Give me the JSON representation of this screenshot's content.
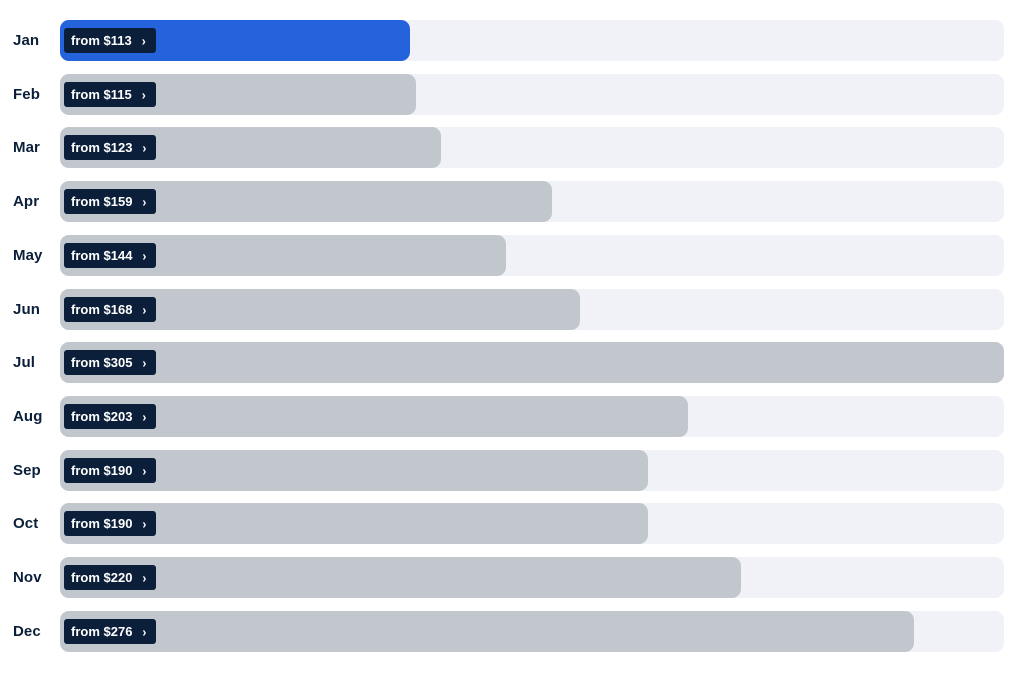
{
  "chart_data": {
    "type": "bar",
    "orientation": "horizontal",
    "categories": [
      "Jan",
      "Feb",
      "Mar",
      "Apr",
      "May",
      "Jun",
      "Jul",
      "Aug",
      "Sep",
      "Oct",
      "Nov",
      "Dec"
    ],
    "values": [
      113,
      115,
      123,
      159,
      144,
      168,
      305,
      203,
      190,
      190,
      220,
      276
    ],
    "value_labels": [
      "from $113",
      "from $115",
      "from $123",
      "from $159",
      "from $144",
      "from $168",
      "from $305",
      "from $203",
      "from $190",
      "from $190",
      "from $220",
      "from $276"
    ],
    "xlim": [
      0,
      305
    ],
    "highlighted_category": "Jan",
    "title": "",
    "xlabel": "",
    "ylabel": "",
    "grid": false,
    "legend": false
  },
  "colors": {
    "highlight_bar": "#2563dc",
    "bar": "#c2c7ce",
    "track": "#f0f2f7",
    "label_background": "#0b1f3a",
    "label_text": "#ffffff",
    "month_text": "#0b1f3a"
  },
  "icons": {
    "label_arrow": "chevron-right-icon"
  }
}
